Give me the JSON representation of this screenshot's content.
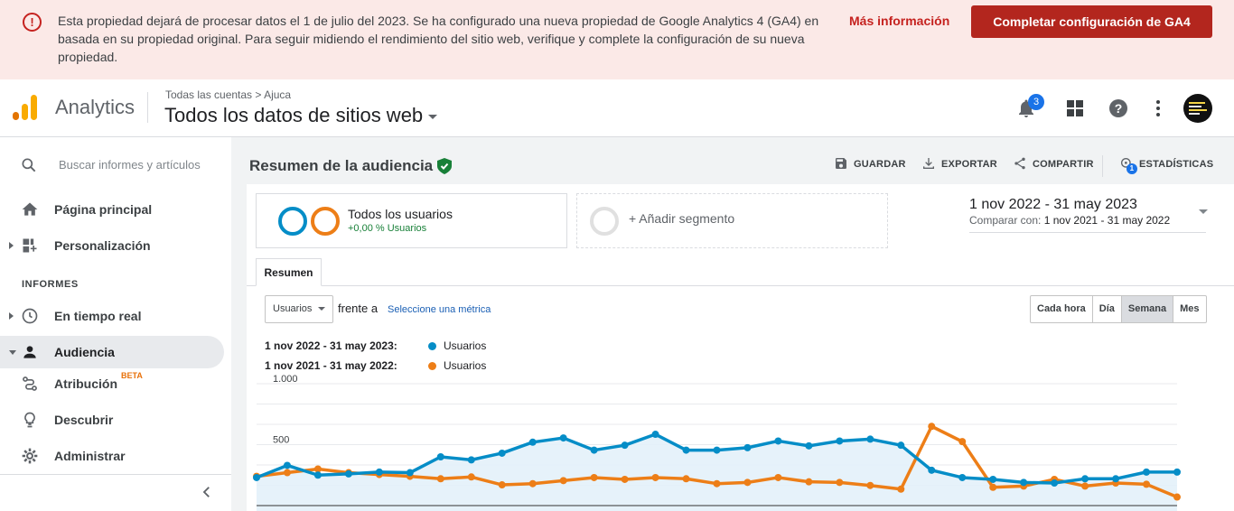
{
  "banner": {
    "message": "Esta propiedad dejará de procesar datos el 1 de julio del 2023. Se ha configurado una nueva propiedad de Google Analytics 4 (GA4) en basada en su propiedad original. Para seguir midiendo el rendimiento del sitio web, verifique y complete la configuración de su nueva propiedad.",
    "more_link": "Más información",
    "cta": "Completar configuración de GA4"
  },
  "header": {
    "product": "Analytics",
    "breadcrumb": "Todas las cuentas > Ajuca",
    "property": "Todos los datos de sitios web",
    "notifications_count": "3"
  },
  "sidebar": {
    "search_placeholder": "Buscar informes y artículos",
    "home": "Página principal",
    "customization": "Personalización",
    "section": "INFORMES",
    "realtime": "En tiempo real",
    "audience": "Audiencia",
    "attribution": "Atribución",
    "attribution_badge": "BETA",
    "discover": "Descubrir",
    "admin": "Administrar"
  },
  "main": {
    "title": "Resumen de la audiencia",
    "actions": {
      "save": "GUARDAR",
      "export": "EXPORTAR",
      "share": "COMPARTIR",
      "insights": "ESTADÍSTICAS",
      "insights_count": "1"
    },
    "segment": {
      "name": "Todos los usuarios",
      "pct": "+0,00 % Usuarios",
      "add": "+ Añadir segmento"
    },
    "date_range": "1 nov 2022 - 31 may 2023",
    "compare_label": "Comparar con:",
    "compare_range": "1 nov 2021 - 31 may 2022",
    "tab": "Resumen",
    "metric_select": "Usuarios",
    "versus": "frente a",
    "select_metric": "Seleccione una métrica",
    "granularity": [
      "Cada hora",
      "Día",
      "Semana",
      "Mes"
    ],
    "granularity_selected": "Semana",
    "legend": [
      {
        "range": "1 nov 2022 - 31 may 2023:",
        "series": "Usuarios",
        "color": "#058dc7"
      },
      {
        "range": "1 nov 2021 - 31 may 2022:",
        "series": "Usuarios",
        "color": "#ed7e17"
      }
    ]
  },
  "colors": {
    "accent": "#1a73e8",
    "danger": "#c5221f",
    "current": "#058dc7",
    "previous": "#ed7e17"
  },
  "chart_data": {
    "type": "line",
    "ytick_labels": [
      "1.000",
      "500"
    ],
    "ylim": [
      0,
      1000
    ],
    "grid": true,
    "series": [
      {
        "name": "Usuarios",
        "values": [
          230,
          330,
          250,
          260,
          275,
          270,
          400,
          375,
          430,
          520,
          555,
          455,
          495,
          585,
          455,
          455,
          475,
          530,
          490,
          530,
          545,
          495,
          290,
          230,
          215,
          190,
          185,
          220,
          220,
          275,
          275
        ]
      },
      {
        "name": "Usuarios",
        "values": [
          240,
          270,
          300,
          270,
          255,
          240,
          220,
          235,
          170,
          180,
          205,
          230,
          215,
          230,
          220,
          180,
          190,
          230,
          195,
          190,
          165,
          135,
          650,
          525,
          150,
          160,
          215,
          160,
          185,
          175,
          70
        ]
      }
    ],
    "x_labels_note": "clipped"
  }
}
